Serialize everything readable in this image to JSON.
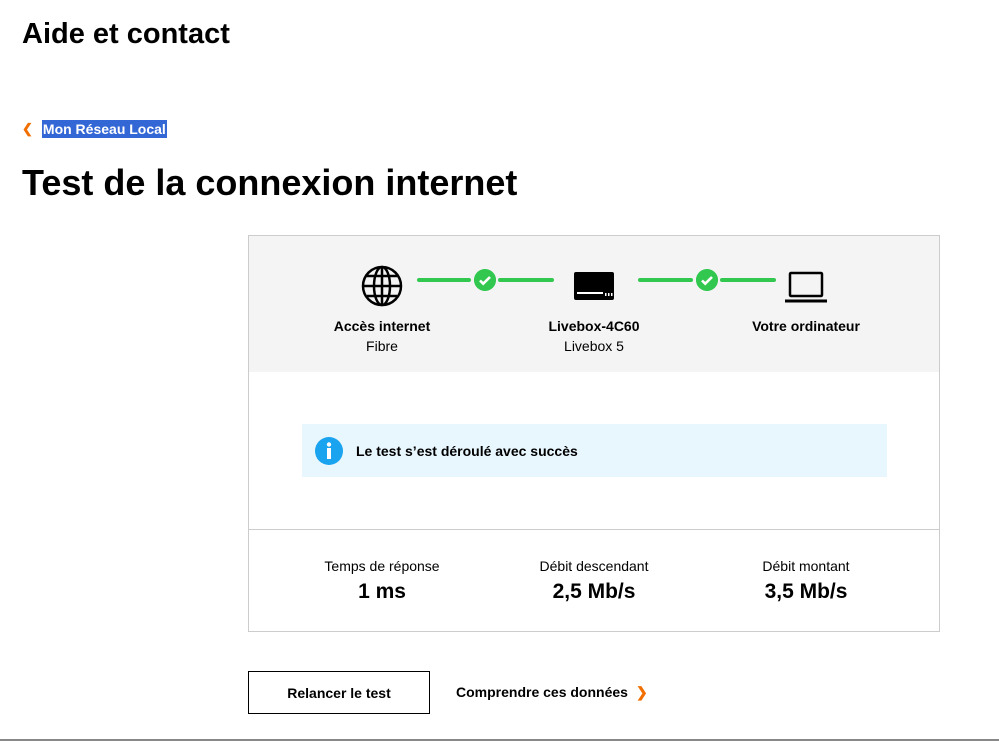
{
  "header": {
    "title": "Aide et contact"
  },
  "breadcrumb": {
    "back_label": "Mon Réseau Local"
  },
  "page": {
    "title": "Test de la connexion internet"
  },
  "diagram": {
    "nodes": [
      {
        "name": "Accès internet",
        "sub": "Fibre",
        "icon": "globe-icon"
      },
      {
        "name": "Livebox-4C60",
        "sub": "Livebox 5",
        "icon": "router-icon"
      },
      {
        "name": "Votre ordinateur",
        "sub": "",
        "icon": "laptop-icon"
      }
    ],
    "links_status": [
      "ok",
      "ok"
    ],
    "status_color": "#32c850"
  },
  "result": {
    "message": "Le test s’est déroulé avec succès",
    "icon": "info-icon",
    "color": "#1aa3ee"
  },
  "stats": [
    {
      "label": "Temps de réponse",
      "value": "1 ms"
    },
    {
      "label": "Débit descendant",
      "value": "2,5 Mb/s"
    },
    {
      "label": "Débit montant",
      "value": "3,5 Mb/s"
    }
  ],
  "actions": {
    "relaunch": "Relancer le test",
    "understand": "Comprendre ces données"
  },
  "accent": "#f16e00"
}
